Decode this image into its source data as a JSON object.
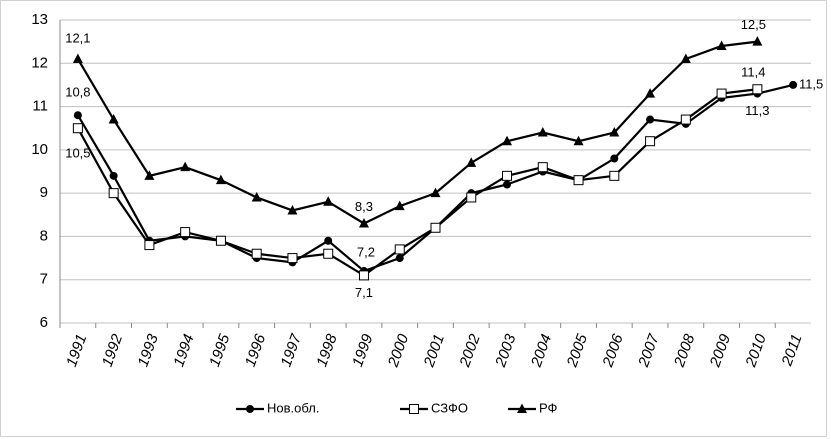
{
  "chart_data": {
    "type": "line",
    "categories": [
      "1991",
      "1992",
      "1993",
      "1994",
      "1995",
      "1996",
      "1997",
      "1998",
      "1999",
      "2000",
      "2001",
      "2002",
      "2003",
      "2004",
      "2005",
      "2006",
      "2007",
      "2008",
      "2009",
      "2010",
      "2011"
    ],
    "series": [
      {
        "name": "Нов.обл.",
        "color": "#000000",
        "marker": "circle",
        "values": [
          10.8,
          9.4,
          7.9,
          8.0,
          7.9,
          7.5,
          7.4,
          7.9,
          7.2,
          7.5,
          8.2,
          9.0,
          9.2,
          9.5,
          9.3,
          9.8,
          10.7,
          10.6,
          11.2,
          11.3,
          11.5
        ],
        "value_labels": [
          "10,8",
          null,
          null,
          null,
          null,
          null,
          null,
          null,
          "7,2",
          null,
          null,
          null,
          null,
          null,
          null,
          null,
          null,
          null,
          null,
          "11,3",
          "11,5"
        ]
      },
      {
        "name": "СЗФО",
        "color": "#000000",
        "marker": "square",
        "values": [
          10.5,
          9.0,
          7.8,
          8.1,
          7.9,
          7.6,
          7.5,
          7.6,
          7.1,
          7.7,
          8.2,
          8.9,
          9.4,
          9.6,
          9.3,
          9.4,
          10.2,
          10.7,
          11.3,
          11.4,
          null
        ],
        "value_labels": [
          "10,5",
          null,
          null,
          null,
          null,
          null,
          null,
          null,
          "7,1",
          null,
          null,
          null,
          null,
          null,
          null,
          null,
          null,
          null,
          null,
          "11,4",
          null
        ]
      },
      {
        "name": "РФ",
        "color": "#000000",
        "marker": "triangle",
        "values": [
          12.1,
          10.7,
          9.4,
          9.6,
          9.3,
          8.9,
          8.6,
          8.8,
          8.3,
          8.7,
          9.0,
          9.7,
          10.2,
          10.4,
          10.2,
          10.4,
          11.3,
          12.1,
          12.4,
          12.5,
          null
        ],
        "value_labels": [
          "12,1",
          null,
          null,
          null,
          null,
          null,
          null,
          null,
          "8,3",
          null,
          null,
          null,
          null,
          null,
          null,
          null,
          null,
          null,
          null,
          "12,5",
          null
        ]
      }
    ],
    "ylim": [
      6,
      13
    ],
    "yticks": [
      6,
      7,
      8,
      9,
      10,
      11,
      12,
      13
    ],
    "grid": true,
    "legend": "bottom"
  }
}
